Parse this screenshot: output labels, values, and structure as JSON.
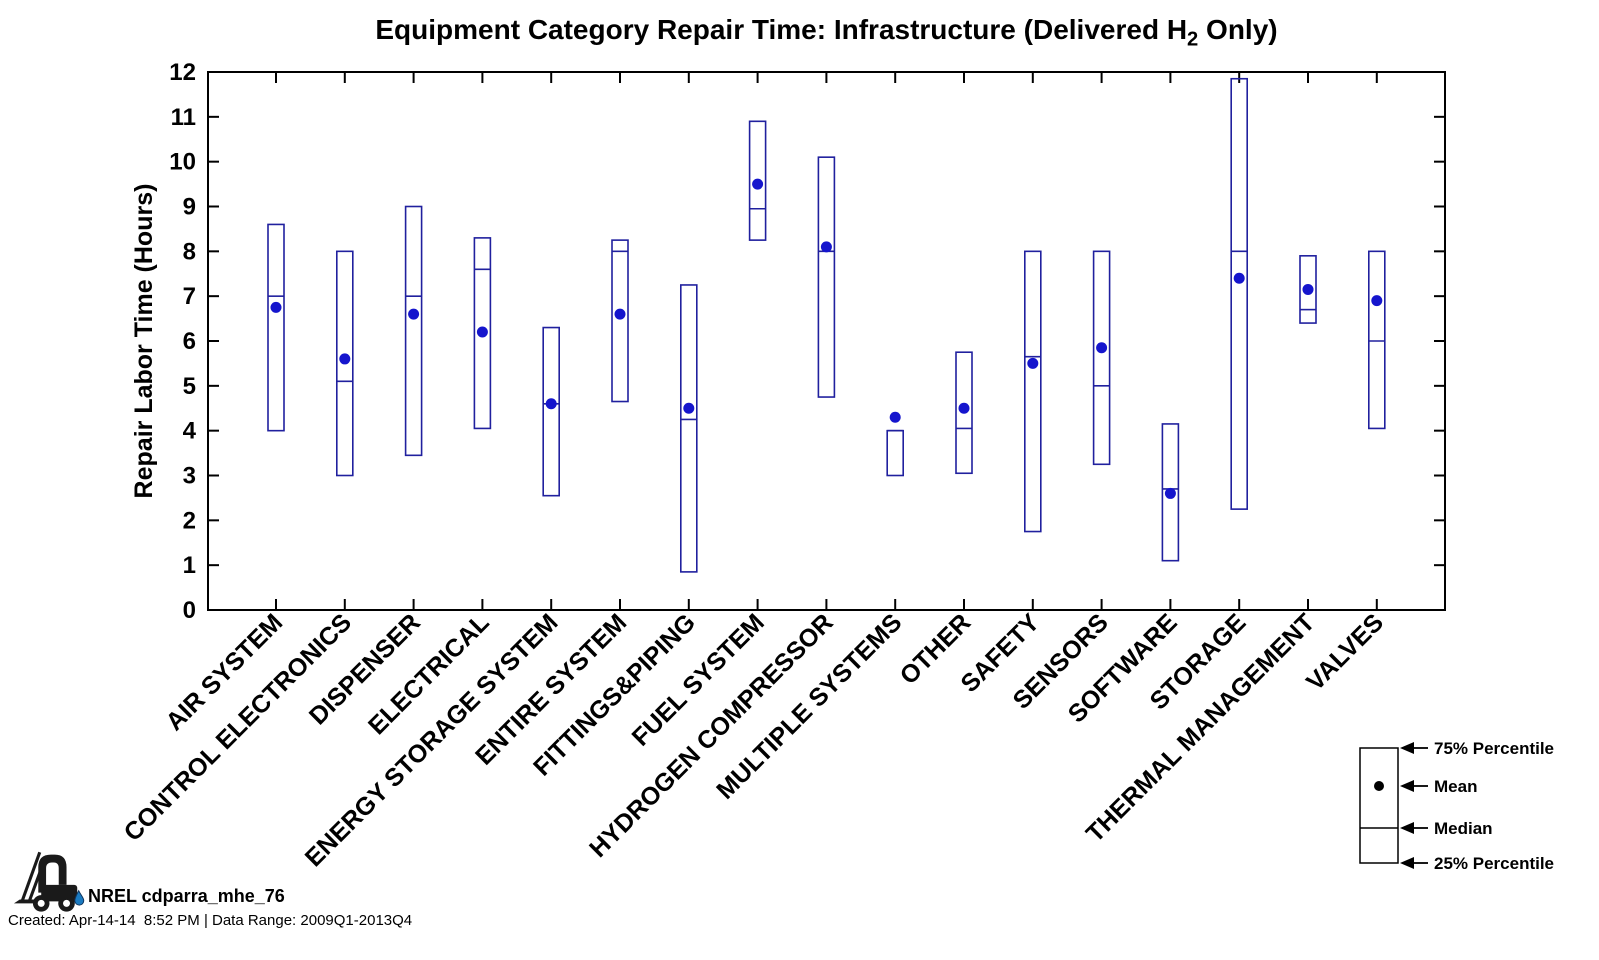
{
  "figure": {
    "title_prefix": "Equipment Category Repair Time: Infrastructure (Delivered H",
    "title_sub": "2",
    "title_suffix": " Only)"
  },
  "y_axis": {
    "label": "Repair Labor Time (Hours)",
    "ticks": [
      0,
      1,
      2,
      3,
      4,
      5,
      6,
      7,
      8,
      9,
      10,
      11,
      12
    ]
  },
  "legend": {
    "entries": [
      "75% Percentile",
      "Mean",
      "Median",
      "25% Percentile"
    ]
  },
  "footer": {
    "logo": "forklift-icon",
    "source_label": "NREL cdparra_mhe_76",
    "created_line": "Created: Apr-14-14  8:52 PM | Data Range: 2009Q1-2013Q4"
  },
  "colors": {
    "box_edge": "#20209e",
    "mean_dot": "#1515cd",
    "axis": "#000000",
    "background": "#ffffff",
    "legend_ink": "#000000",
    "drop_blue": "#1a7ac0"
  },
  "chart_data": {
    "type": "box",
    "title": "Equipment Category Repair Time: Infrastructure (Delivered H2 Only)",
    "xlabel": "",
    "ylabel": "Repair Labor Time (Hours)",
    "ylim": [
      0,
      12
    ],
    "ytick_step": 1,
    "grid": false,
    "legend_position": "bottom-right-outside",
    "categories": [
      "AIR SYSTEM",
      "CONTROL ELECTRONICS",
      "DISPENSER",
      "ELECTRICAL",
      "ENERGY STORAGE SYSTEM",
      "ENTIRE SYSTEM",
      "FITTINGS&PIPING",
      "FUEL SYSTEM",
      "HYDROGEN COMPRESSOR",
      "MULTIPLE SYSTEMS",
      "OTHER",
      "SAFETY",
      "SENSORS",
      "SOFTWARE",
      "STORAGE",
      "THERMAL MANAGEMENT",
      "VALVES"
    ],
    "series": [
      {
        "name": "75% Percentile",
        "values": [
          8.6,
          8.0,
          9.0,
          8.3,
          6.3,
          8.25,
          7.25,
          10.9,
          10.1,
          4.0,
          5.75,
          8.0,
          8.0,
          4.15,
          11.85,
          7.9,
          8.0
        ]
      },
      {
        "name": "Mean",
        "values": [
          6.75,
          5.6,
          6.6,
          6.2,
          4.6,
          6.6,
          4.5,
          9.5,
          8.1,
          4.3,
          4.5,
          5.5,
          5.85,
          2.6,
          7.4,
          7.15,
          6.9
        ]
      },
      {
        "name": "Median",
        "values": [
          7.0,
          5.1,
          7.0,
          7.6,
          4.6,
          8.0,
          4.25,
          8.95,
          8.0,
          4.0,
          4.05,
          5.65,
          5.0,
          2.7,
          8.0,
          6.7,
          6.0
        ]
      },
      {
        "name": "25% Percentile",
        "values": [
          4.0,
          3.0,
          3.45,
          4.05,
          2.55,
          4.65,
          0.85,
          8.25,
          4.75,
          3.0,
          3.05,
          1.75,
          3.25,
          1.1,
          2.25,
          6.4,
          4.05
        ]
      }
    ]
  }
}
